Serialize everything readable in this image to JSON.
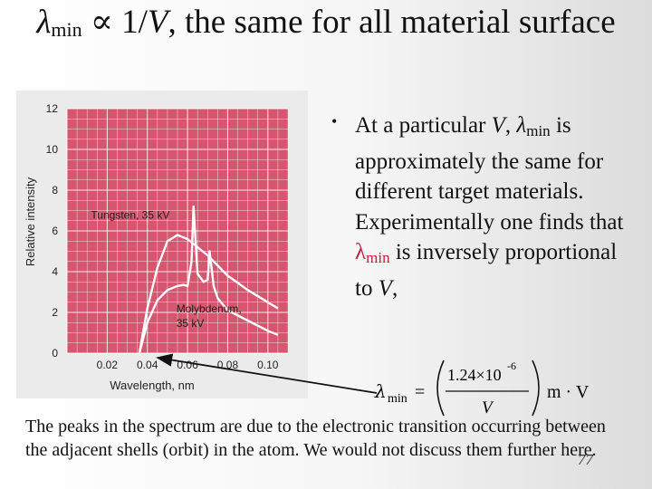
{
  "title": {
    "lambda": "λ",
    "sub": "min",
    "prop": " ∝ 1/",
    "v": "V",
    "rest": ", the same for all material surface"
  },
  "chart_data": {
    "type": "line",
    "ylabel": "Relative intensity",
    "xlabel": "Wavelength, nm",
    "yticks": [
      "0",
      "2",
      "4",
      "6",
      "8",
      "10",
      "12"
    ],
    "xticks": [
      "0.02",
      "0.04",
      "0.06",
      "0.08",
      "0.10"
    ],
    "xlim": [
      0,
      0.11
    ],
    "ylim": [
      0,
      12
    ],
    "grid": true,
    "colors": {
      "background": "#d6566f",
      "grid": "#ffffff",
      "curve": "#ffffff",
      "panel": "#ebebeb"
    },
    "series": [
      {
        "name": "Tungsten, 35 kV",
        "x": [
          0.036,
          0.04,
          0.045,
          0.05,
          0.055,
          0.06,
          0.07,
          0.08,
          0.09,
          0.1,
          0.105
        ],
        "y": [
          0,
          2.2,
          4.2,
          5.5,
          5.8,
          5.6,
          4.8,
          3.8,
          3.1,
          2.5,
          2.2
        ]
      },
      {
        "name": "Molybdenum, 35 kV",
        "x": [
          0.036,
          0.04,
          0.045,
          0.05,
          0.055,
          0.058,
          0.06,
          0.062,
          0.063,
          0.065,
          0.068,
          0.07,
          0.071,
          0.073,
          0.075,
          0.08,
          0.09,
          0.1,
          0.105
        ],
        "y": [
          0,
          1.5,
          2.6,
          3.1,
          3.3,
          3.35,
          3.3,
          4.5,
          7.2,
          3.9,
          3.5,
          3.6,
          5.0,
          3.3,
          2.7,
          2.1,
          1.6,
          1.1,
          0.9
        ]
      }
    ],
    "annotations": [
      "Tungsten, 35 kV",
      "Molybdenum,",
      "35 kV"
    ]
  },
  "bullet": {
    "dot": "•",
    "p1": "At a particular ",
    "v1": "V",
    "p2": ",  ",
    "lambda1": "λ",
    "sub1": "min",
    "p3": " is approximately the same for different target materials. Experimentally one finds that ",
    "lambda2": "λ",
    "sub2": "min",
    "p4": " is inversely proportional to ",
    "v2": "V",
    "p5": ","
  },
  "formula": {
    "lhs": "λ",
    "lhs_sub": "min",
    "eq": "=",
    "numerator": "1.24×10",
    "exponent": "-6",
    "denominator": "V",
    "units": "m · V"
  },
  "footer": {
    "text": "The peaks in the spectrum are due to the electronic transition occurring between the adjacent shells (orbit) in the atom. We would not discuss them further here."
  },
  "slide_number": "77"
}
